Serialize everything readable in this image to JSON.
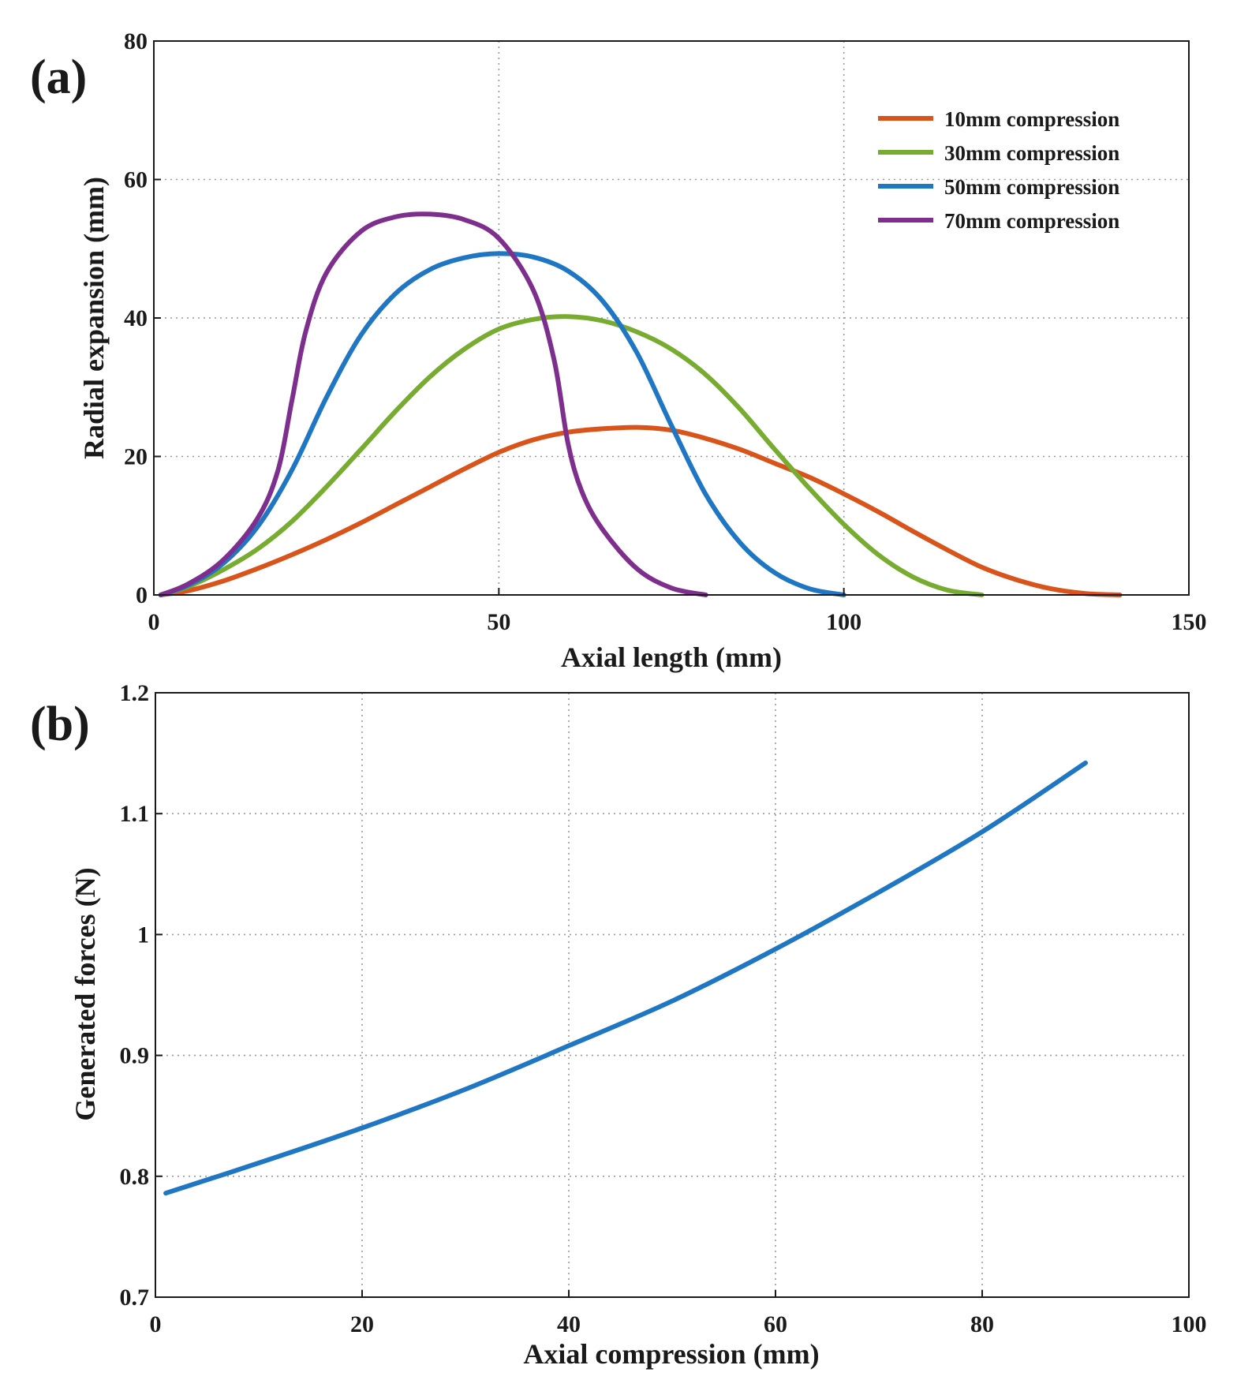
{
  "chart_data": [
    {
      "panel_label": "(a)",
      "type": "line",
      "xlabel": "Axial length (mm)",
      "ylabel": "Radial expansion (mm)",
      "xlim": [
        0,
        150
      ],
      "ylim": [
        0,
        80
      ],
      "xticks": [
        0,
        50,
        100,
        150
      ],
      "yticks": [
        0,
        20,
        40,
        60,
        80
      ],
      "grid": true,
      "legend_position": "top-right",
      "series": [
        {
          "name": "10mm compression",
          "color": "#d9541a",
          "x": [
            1,
            5,
            10,
            15,
            20,
            25,
            30,
            35,
            40,
            45,
            50,
            55,
            60,
            65,
            70,
            75,
            80,
            85,
            90,
            95,
            100,
            105,
            110,
            115,
            120,
            125,
            130,
            135,
            140
          ],
          "y": [
            0,
            0.6,
            2.0,
            3.8,
            5.8,
            8.0,
            10.4,
            13.0,
            15.6,
            18.2,
            20.6,
            22.4,
            23.5,
            24.0,
            24.2,
            23.8,
            22.6,
            21.0,
            19.0,
            17.0,
            14.6,
            12.0,
            9.2,
            6.5,
            4.0,
            2.2,
            0.9,
            0.2,
            0
          ]
        },
        {
          "name": "30mm compression",
          "color": "#77ac30",
          "x": [
            1,
            5,
            10,
            15,
            20,
            25,
            30,
            35,
            40,
            45,
            50,
            55,
            60,
            65,
            70,
            75,
            80,
            85,
            90,
            95,
            100,
            105,
            110,
            115,
            120
          ],
          "y": [
            0,
            1.2,
            3.6,
            6.6,
            10.6,
            15.6,
            21.0,
            26.5,
            31.5,
            35.5,
            38.4,
            39.8,
            40.2,
            39.6,
            38.0,
            35.5,
            31.8,
            26.8,
            21.0,
            15.4,
            10.2,
            5.8,
            2.6,
            0.7,
            0
          ]
        },
        {
          "name": "50mm compression",
          "color": "#1f77c4",
          "x": [
            1,
            5,
            10,
            15,
            20,
            25,
            30,
            35,
            40,
            45,
            50,
            55,
            60,
            65,
            70,
            75,
            80,
            85,
            90,
            95,
            100
          ],
          "y": [
            0,
            1.4,
            4.5,
            9.8,
            18.0,
            28.5,
            37.5,
            43.5,
            47.0,
            48.7,
            49.3,
            48.8,
            46.8,
            42.5,
            35.0,
            24.5,
            14.5,
            7.5,
            3.2,
            0.9,
            0
          ]
        },
        {
          "name": "70mm compression",
          "color": "#7e2f8e",
          "x": [
            1,
            5,
            10,
            15,
            18,
            20,
            22,
            25,
            30,
            35,
            40,
            45,
            50,
            55,
            58,
            60,
            62,
            65,
            70,
            75,
            80
          ],
          "y": [
            0,
            1.6,
            5.0,
            11.0,
            18.0,
            28.0,
            38.0,
            46.5,
            52.5,
            54.6,
            55.0,
            54.2,
            51.5,
            44.0,
            34.0,
            22.0,
            15.0,
            9.5,
            3.8,
            1.0,
            0
          ]
        }
      ]
    },
    {
      "panel_label": "(b)",
      "type": "line",
      "xlabel": "Axial compression (mm)",
      "ylabel": "Generated forces (N)",
      "xlim": [
        0,
        100
      ],
      "ylim": [
        0.7,
        1.2
      ],
      "xticks": [
        0,
        20,
        40,
        60,
        80,
        100
      ],
      "yticks": [
        0.7,
        0.8,
        0.9,
        1,
        1.1,
        1.2
      ],
      "yticklabels": [
        "0.7",
        "0.8",
        "0.9",
        "1",
        "1.1",
        "1.2"
      ],
      "grid": true,
      "series": [
        {
          "color": "#1f77c4",
          "x": [
            1,
            10,
            20,
            30,
            40,
            50,
            60,
            70,
            80,
            90
          ],
          "y": [
            0.786,
            0.811,
            0.84,
            0.872,
            0.908,
            0.945,
            0.988,
            1.035,
            1.085,
            1.142
          ]
        }
      ]
    }
  ]
}
